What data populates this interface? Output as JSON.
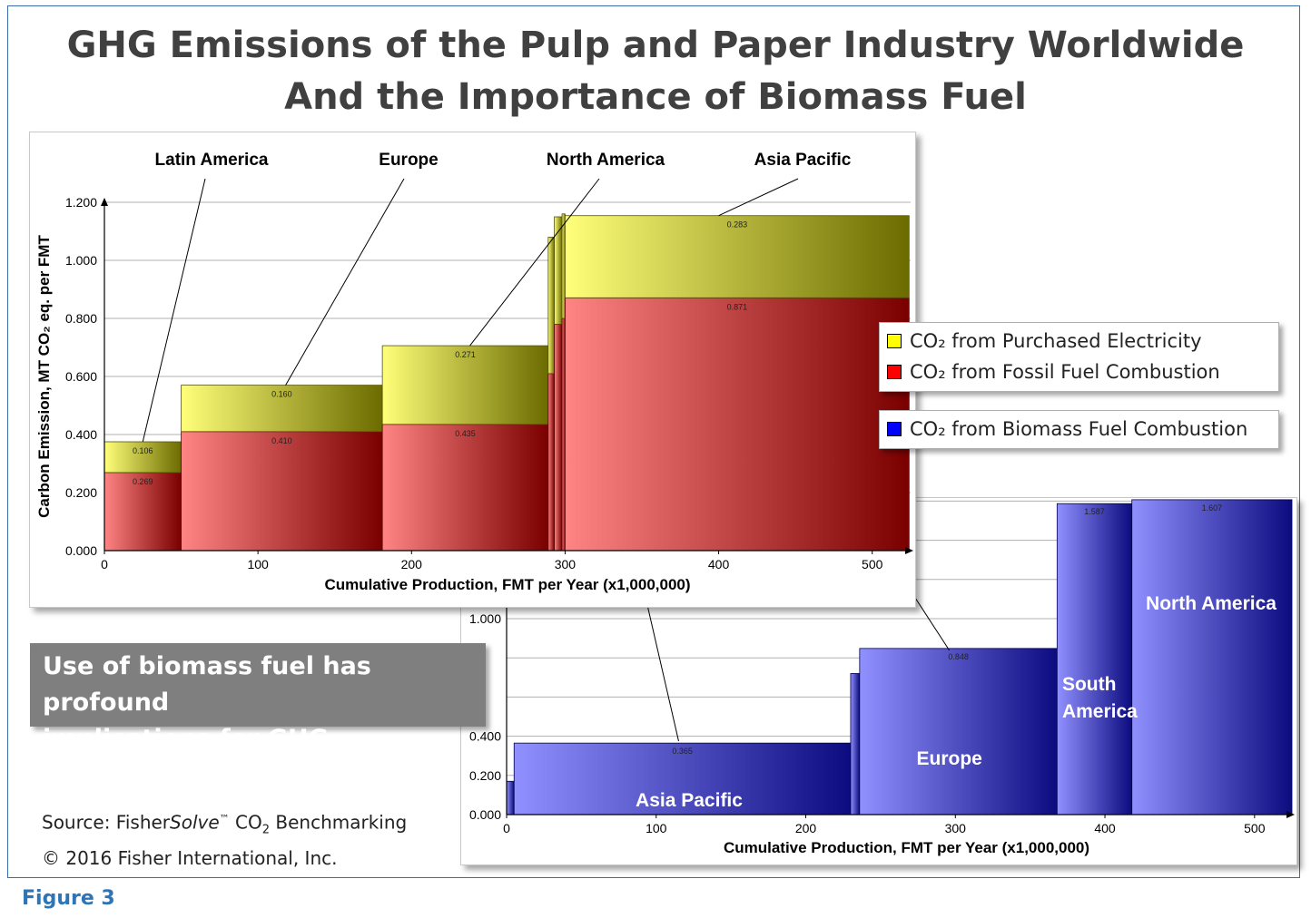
{
  "title_line1": "GHG Emissions of the Pulp and Paper Industry Worldwide",
  "title_line2": "And the Importance of Biomass Fuel",
  "callout": {
    "line1": "Use of biomass fuel has profound",
    "line2": "implications for GHG calculation."
  },
  "source": {
    "prefix": "Source: Fisher",
    "italic": "Solve",
    "tm": "™",
    "suffix": " CO",
    "sub": "2",
    "end": " Benchmarking",
    "copyright": "© 2016 Fisher International, Inc."
  },
  "figure_label": "Figure 3",
  "legend": [
    {
      "label": "CO₂ from Purchased Electricity",
      "color": "#ffff00"
    },
    {
      "label": "CO₂ from Fossil Fuel Combustion",
      "color": "#ff0000"
    },
    {
      "label": "CO₂ from Biomass Fuel Combustion",
      "color": "#0000ff"
    }
  ],
  "chart_data": [
    {
      "type": "bar",
      "subtype": "variable-width stacked (marimekko)",
      "xlabel": "Cumulative Production, FMT per Year (x1,000,000)",
      "ylabel": "Carbon Emission, MT CO₂ eq. per FMT",
      "xlim": [
        0,
        525
      ],
      "ylim": [
        0,
        1.2
      ],
      "xticks": [
        "0",
        "100",
        "200",
        "300",
        "400",
        "500"
      ],
      "yticks": [
        "0.000",
        "0.200",
        "0.400",
        "0.600",
        "0.800",
        "1.000",
        "1.200"
      ],
      "region_labels": [
        "Latin America",
        "Europe",
        "North America",
        "Asia Pacific"
      ],
      "series": [
        {
          "name": "CO₂ from Fossil Fuel Combustion",
          "color": "#ff0000"
        },
        {
          "name": "CO₂ from Purchased Electricity",
          "color": "#ffff00"
        }
      ],
      "bars": [
        {
          "x0": 0,
          "x1": 50,
          "fossil": 0.269,
          "electricity": 0.106,
          "fossil_label": "0.269",
          "electricity_label": "0.106"
        },
        {
          "x0": 50,
          "x1": 181,
          "fossil": 0.41,
          "electricity": 0.16,
          "fossil_label": "0.410",
          "electricity_label": "0.160"
        },
        {
          "x0": 181,
          "x1": 289,
          "fossil": 0.435,
          "electricity": 0.271,
          "fossil_label": "0.435",
          "electricity_label": "0.271"
        },
        {
          "x0": 289,
          "x1": 293,
          "fossil": 0.61,
          "electricity": 0.47
        },
        {
          "x0": 293,
          "x1": 298,
          "fossil": 0.78,
          "electricity": 0.37
        },
        {
          "x0": 298,
          "x1": 300,
          "fossil": 0.8,
          "electricity": 0.36
        },
        {
          "x0": 300,
          "x1": 524,
          "fossil": 0.871,
          "electricity": 0.283,
          "fossil_label": "0.871",
          "electricity_label": "0.283"
        }
      ]
    },
    {
      "type": "bar",
      "subtype": "variable-width (marimekko)",
      "xlabel": "Cumulative Production, FMT per Year (x1,000,000)",
      "xlim": [
        0,
        525
      ],
      "ylim": [
        0,
        1.7
      ],
      "xticks": [
        "0",
        "100",
        "200",
        "300",
        "400",
        "500"
      ],
      "yticks": [
        "0.000",
        "0.200",
        "0.400",
        "1.000"
      ],
      "series": [
        {
          "name": "CO₂ from Biomass Fuel Combustion",
          "color": "#0000ff"
        }
      ],
      "bars": [
        {
          "x0": 0,
          "x1": 5,
          "value": 0.17
        },
        {
          "x0": 5,
          "x1": 230,
          "value": 0.365,
          "label": "0.365",
          "region": "Asia Pacific"
        },
        {
          "x0": 230,
          "x1": 236,
          "value": 0.72
        },
        {
          "x0": 236,
          "x1": 368,
          "value": 0.848,
          "label": "0.848",
          "region": "Europe"
        },
        {
          "x0": 368,
          "x1": 418,
          "value": 1.587,
          "label": "1.587",
          "region": "South America"
        },
        {
          "x0": 418,
          "x1": 525,
          "value": 1.607,
          "label": "1.607",
          "region": "North America"
        }
      ]
    }
  ]
}
